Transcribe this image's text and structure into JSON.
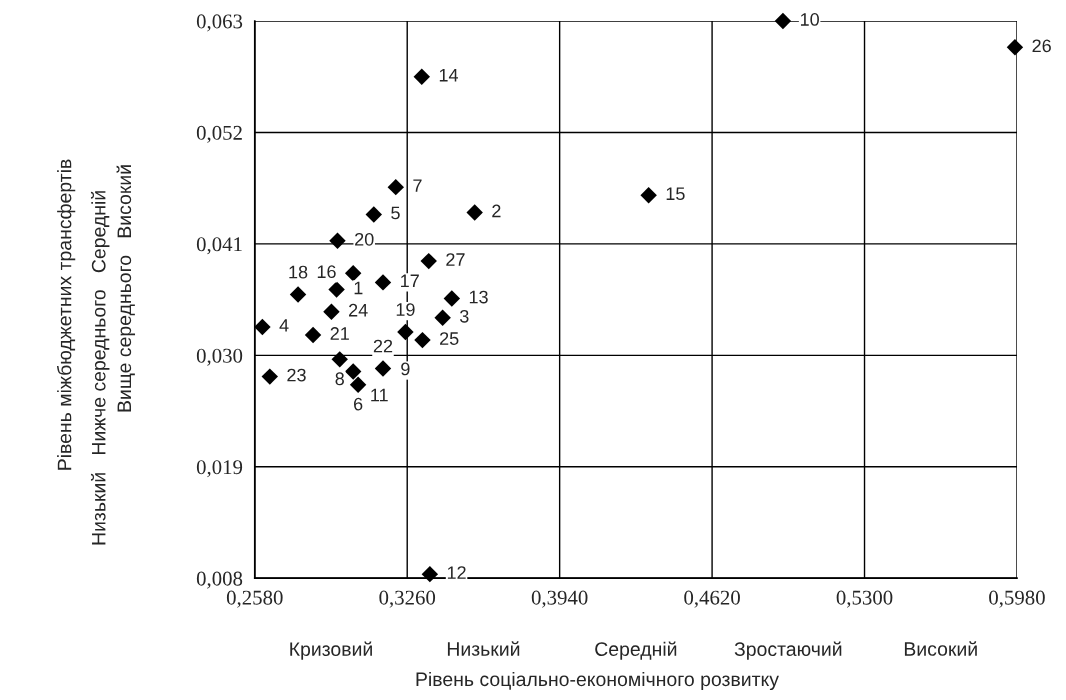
{
  "chart_data": {
    "type": "scatter",
    "xlabel": "Рівень соціально-економічного розвитку",
    "x": [
      0.2945,
      0.3561,
      0.3418,
      0.2614,
      0.3111,
      0.3041,
      0.3209,
      0.2959,
      0.3155,
      0.4936,
      0.3019,
      0.3361,
      0.3459,
      0.3325,
      0.4337,
      0.3019,
      0.3152,
      0.2773,
      0.3252,
      0.2949,
      0.284,
      0.3152,
      0.2647,
      0.2922,
      0.3328,
      0.5971,
      0.3356
    ],
    "series": [
      {
        "color": "#000000",
        "values": [
          0.0365,
          0.0441,
          0.0337,
          0.0328,
          0.0439,
          0.0271,
          0.0466,
          0.0296,
          null,
          0.063,
          0.0284,
          0.0084,
          0.0356,
          0.0575,
          0.0458,
          0.0381,
          0.0372,
          0.036,
          0.0323,
          0.0413,
          0.032,
          0.0287,
          0.0279,
          0.0343,
          0.0315,
          0.0604,
          0.0393
        ]
      }
    ],
    "marker": "diamond",
    "xlim": [
      0.258,
      0.598
    ],
    "ylim": [
      0.008,
      0.063
    ],
    "xticks": [
      {
        "value": 0.258,
        "label": "0,2580"
      },
      {
        "value": 0.326,
        "label": "0,3260"
      },
      {
        "value": 0.394,
        "label": "0,3940"
      },
      {
        "value": 0.462,
        "label": "0,4620"
      },
      {
        "value": 0.53,
        "label": "0,5300"
      },
      {
        "value": 0.598,
        "label": "0,5980"
      }
    ],
    "yticks": [
      {
        "value": 0.008,
        "label": "0,008"
      },
      {
        "value": 0.019,
        "label": "0,019"
      },
      {
        "value": 0.03,
        "label": "0,030"
      },
      {
        "value": 0.041,
        "label": "0,041"
      },
      {
        "value": 0.052,
        "label": "0,052"
      },
      {
        "value": 0.063,
        "label": "0,063"
      }
    ],
    "grid": true,
    "annotations": [
      {
        "text": "1",
        "x": 0.2945,
        "y": 0.0365
      },
      {
        "text": "2",
        "x": 0.3561,
        "y": 0.0441
      },
      {
        "text": "3",
        "x": 0.3418,
        "y": 0.0337
      },
      {
        "text": "4",
        "x": 0.2614,
        "y": 0.0328
      },
      {
        "text": "5",
        "x": 0.3111,
        "y": 0.0439
      },
      {
        "text": "6",
        "x": 0.3041,
        "y": 0.0271
      },
      {
        "text": "7",
        "x": 0.3209,
        "y": 0.0466
      },
      {
        "text": "8",
        "x": 0.2959,
        "y": 0.0296
      },
      {
        "text": "9",
        "x": 0.3155,
        "y": 0.0285
      },
      {
        "text": "10",
        "x": 0.4936,
        "y": 0.063
      },
      {
        "text": "11",
        "x": 0.3019,
        "y": 0.0284
      },
      {
        "text": "12",
        "x": 0.3361,
        "y": 0.0084
      },
      {
        "text": "13",
        "x": 0.3459,
        "y": 0.0356
      },
      {
        "text": "14",
        "x": 0.3325,
        "y": 0.0575
      },
      {
        "text": "15",
        "x": 0.4337,
        "y": 0.0458
      },
      {
        "text": "16",
        "x": 0.3019,
        "y": 0.0381
      },
      {
        "text": "17",
        "x": 0.3152,
        "y": 0.0372
      },
      {
        "text": "18",
        "x": 0.2773,
        "y": 0.036
      },
      {
        "text": "19",
        "x": 0.3252,
        "y": 0.0323
      },
      {
        "text": "20",
        "x": 0.2949,
        "y": 0.0413
      },
      {
        "text": "21",
        "x": 0.284,
        "y": 0.032
      },
      {
        "text": "22",
        "x": 0.3152,
        "y": 0.0287
      },
      {
        "text": "23",
        "x": 0.2647,
        "y": 0.0279
      },
      {
        "text": "24",
        "x": 0.2922,
        "y": 0.0343
      },
      {
        "text": "25",
        "x": 0.3328,
        "y": 0.0315
      },
      {
        "text": "26",
        "x": 0.5971,
        "y": 0.0604
      },
      {
        "text": "27",
        "x": 0.3356,
        "y": 0.0393
      },
      "Кризовий",
      "Низький",
      "Середній",
      "Зростаючий",
      "Високий",
      "Рівень міжбюджетних трансфертів",
      "Низький   Нижче середнього   Середній",
      "Вище середнього   Високий"
    ]
  }
}
